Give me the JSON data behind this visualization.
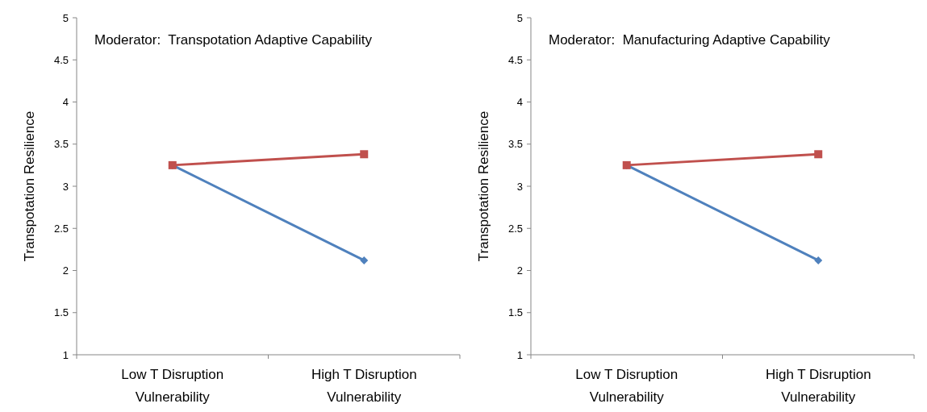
{
  "chart_data": [
    {
      "type": "line",
      "title": "Moderator:  Transpotation Adaptive Capability",
      "ylabel": "Transpotation Resilience",
      "categories": [
        "Low T Disruption Vulnerability",
        "High T Disruption Vulnerability"
      ],
      "ylim": [
        1,
        5
      ],
      "yticks": [
        1,
        1.5,
        2,
        2.5,
        3,
        3.5,
        4,
        4.5,
        5
      ],
      "grid": false,
      "series": [
        {
          "color": "#4f81bd",
          "marker": "diamond",
          "values": [
            3.25,
            2.12
          ]
        },
        {
          "color": "#c0504d",
          "marker": "square",
          "values": [
            3.25,
            3.38
          ]
        }
      ]
    },
    {
      "type": "line",
      "title": "Moderator:  Manufacturing Adaptive Capability",
      "ylabel": "Transpotation Resilience",
      "categories": [
        "Low T Disruption Vulnerability",
        "High T Disruption Vulnerability"
      ],
      "ylim": [
        1,
        5
      ],
      "yticks": [
        1,
        1.5,
        2,
        2.5,
        3,
        3.5,
        4,
        4.5,
        5
      ],
      "grid": false,
      "series": [
        {
          "color": "#4f81bd",
          "marker": "diamond",
          "values": [
            3.25,
            2.12
          ]
        },
        {
          "color": "#c0504d",
          "marker": "square",
          "values": [
            3.25,
            3.38
          ]
        }
      ]
    }
  ]
}
